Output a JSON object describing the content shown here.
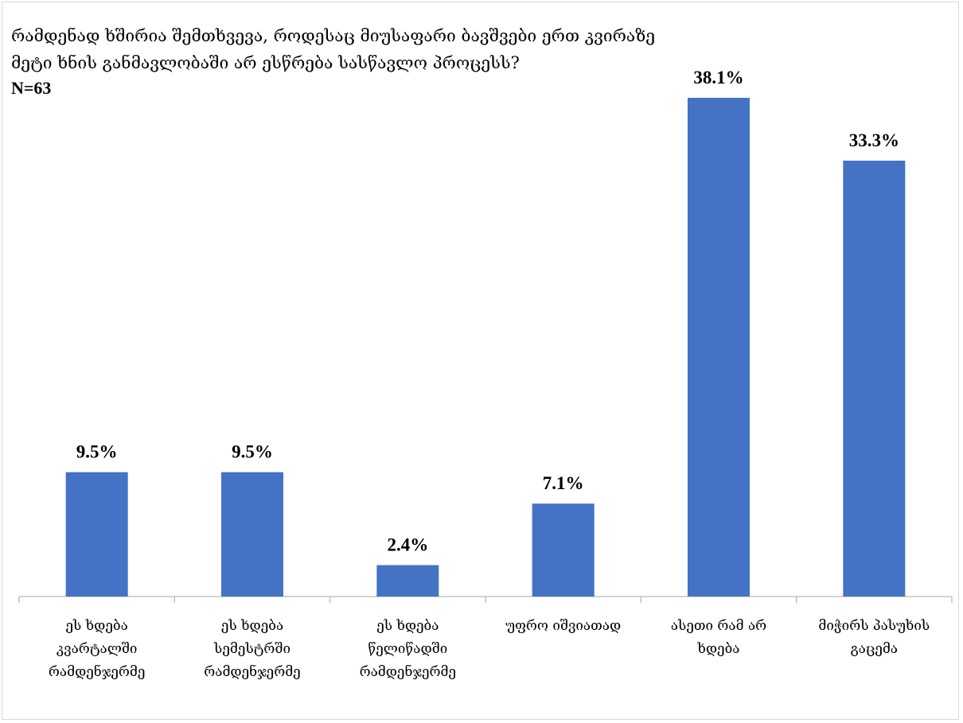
{
  "chart_data": {
    "type": "bar",
    "title_lines": [
      "რამდენად ხშირია შემთხვევა, როდესაც მიუსაფარი ბავშვები ერთ კვირაზე",
      "მეტი ხნის განმავლობაში არ ესწრება სასწავლო პროცესს?"
    ],
    "subtitle": "N=63",
    "categories": [
      [
        "ეს ხდება",
        "კვარტალში",
        "რამდენჯერმე"
      ],
      [
        "ეს ხდება",
        "სემესტრში",
        "რამდენჯერმე"
      ],
      [
        "ეს ხდება",
        "წელიწადში",
        "რამდენჯერმე"
      ],
      [
        "უფრო იშვიათად"
      ],
      [
        "ასეთი რამ არ",
        "ხდება"
      ],
      [
        "მიჭირს პასუხის",
        "გაცემა"
      ]
    ],
    "values": [
      9.5,
      9.5,
      2.4,
      7.1,
      38.1,
      33.3
    ],
    "value_labels": [
      "9.5%",
      "9.5%",
      "2.4%",
      "7.1%",
      "38.1%",
      "33.3%"
    ],
    "ylim": [
      0,
      40
    ],
    "bar_color": "#4472c4",
    "axis_color": "#a6a6a6",
    "grid": false,
    "legend": "none"
  }
}
